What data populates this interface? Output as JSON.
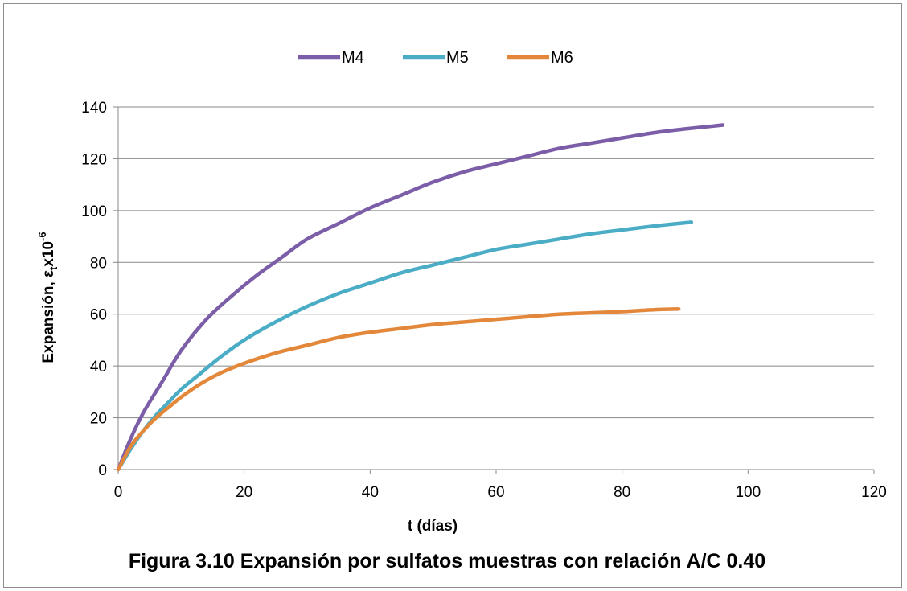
{
  "chart_data": {
    "type": "line",
    "caption": "Figura 3.10 Expansión por sulfatos muestras con relación A/C 0.40",
    "xlabel": "t (días)",
    "ylabel_main": "Expansión, ε",
    "ylabel_sub": "t",
    "ylabel_tail": "x10",
    "ylabel_sup": "-6",
    "xlim": [
      0,
      120
    ],
    "ylim": [
      0,
      140
    ],
    "x_ticks": [
      0,
      20,
      40,
      60,
      80,
      100,
      120
    ],
    "y_ticks": [
      0,
      20,
      40,
      60,
      80,
      100,
      120,
      140
    ],
    "grid": "horizontal",
    "legend_position": "top",
    "series": [
      {
        "name": "M4",
        "color": "#7b5ea7",
        "x": [
          0,
          2,
          4,
          7,
          10,
          14,
          18,
          22,
          26,
          30,
          35,
          40,
          45,
          50,
          55,
          60,
          65,
          70,
          75,
          80,
          85,
          90,
          96
        ],
        "y": [
          0,
          12,
          22,
          34,
          46,
          58,
          67,
          75,
          82,
          89,
          95,
          101,
          106,
          111,
          115,
          118,
          121,
          124,
          126,
          128,
          130,
          131.5,
          133
        ]
      },
      {
        "name": "M5",
        "color": "#4bacc6",
        "x": [
          0,
          2,
          4,
          6,
          8,
          10,
          13,
          16,
          20,
          25,
          30,
          35,
          40,
          45,
          50,
          55,
          60,
          65,
          70,
          75,
          80,
          85,
          91
        ],
        "y": [
          0,
          8,
          15,
          21,
          26,
          31,
          37,
          43,
          50,
          57,
          63,
          68,
          72,
          76,
          79,
          82,
          85,
          87,
          89,
          91,
          92.5,
          94,
          95.5
        ]
      },
      {
        "name": "M6",
        "color": "#e3883b",
        "x": [
          0,
          2,
          4,
          6,
          8,
          10,
          13,
          16,
          20,
          25,
          30,
          35,
          40,
          45,
          50,
          55,
          60,
          65,
          70,
          75,
          80,
          85,
          89
        ],
        "y": [
          0,
          9,
          15,
          20,
          24,
          28,
          33,
          37,
          41,
          45,
          48,
          51,
          53,
          54.5,
          56,
          57,
          58,
          59,
          60,
          60.5,
          61,
          61.7,
          62
        ]
      }
    ]
  }
}
